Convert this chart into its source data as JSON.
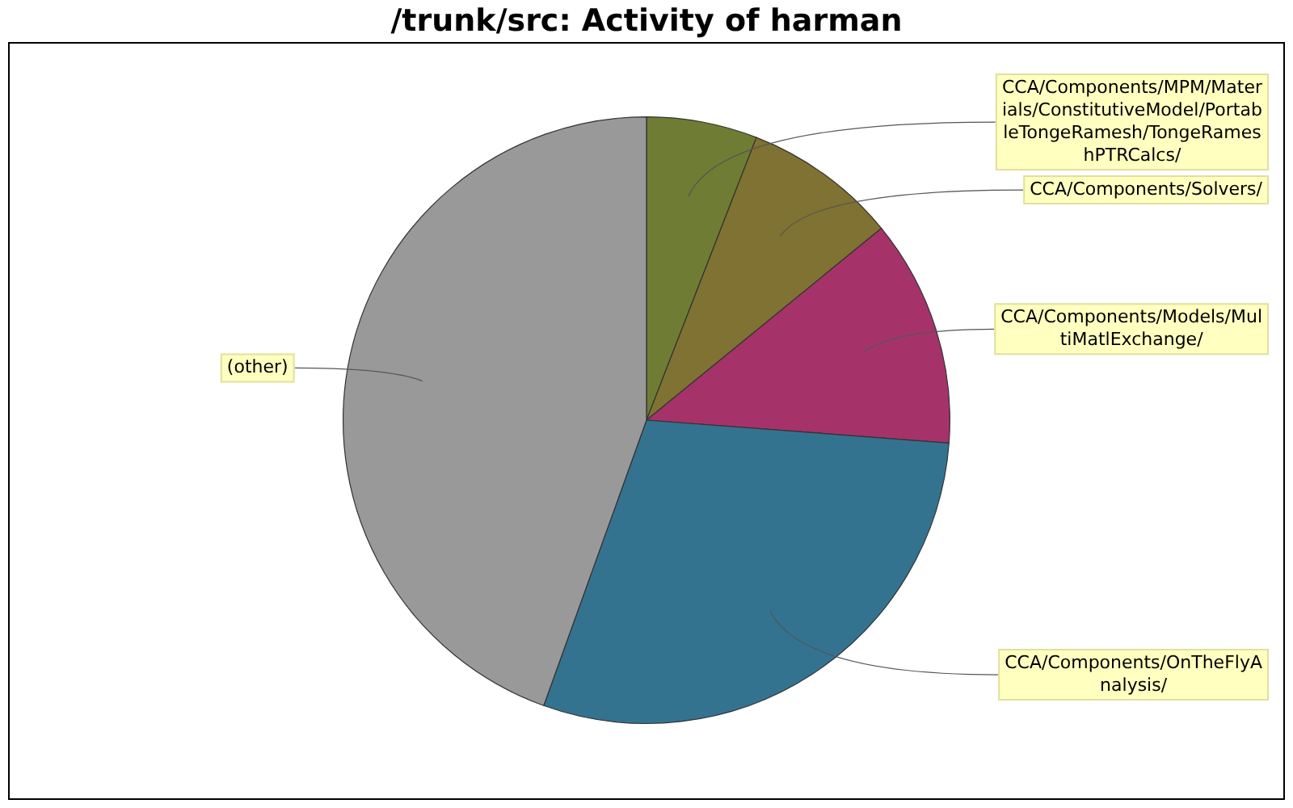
{
  "chart_data": {
    "type": "pie",
    "title": "/trunk/src: Activity of harman",
    "categories": [
      "CCA/Components/MPM/Materials/ConstitutiveModel/PortableTongeRamesh/TongeRameshPTRCalcs/",
      "CCA/Components/Solvers/",
      "CCA/Components/Models/MultiMatlExchange/",
      "CCA/Components/OnTheFlyAnalysis/",
      "(other)"
    ],
    "values": [
      5.9,
      8.2,
      12.1,
      29.3,
      44.5
    ],
    "colors": [
      "#6f7c33",
      "#7f7233",
      "#a5336a",
      "#337390",
      "#999999"
    ],
    "legend": false
  }
}
